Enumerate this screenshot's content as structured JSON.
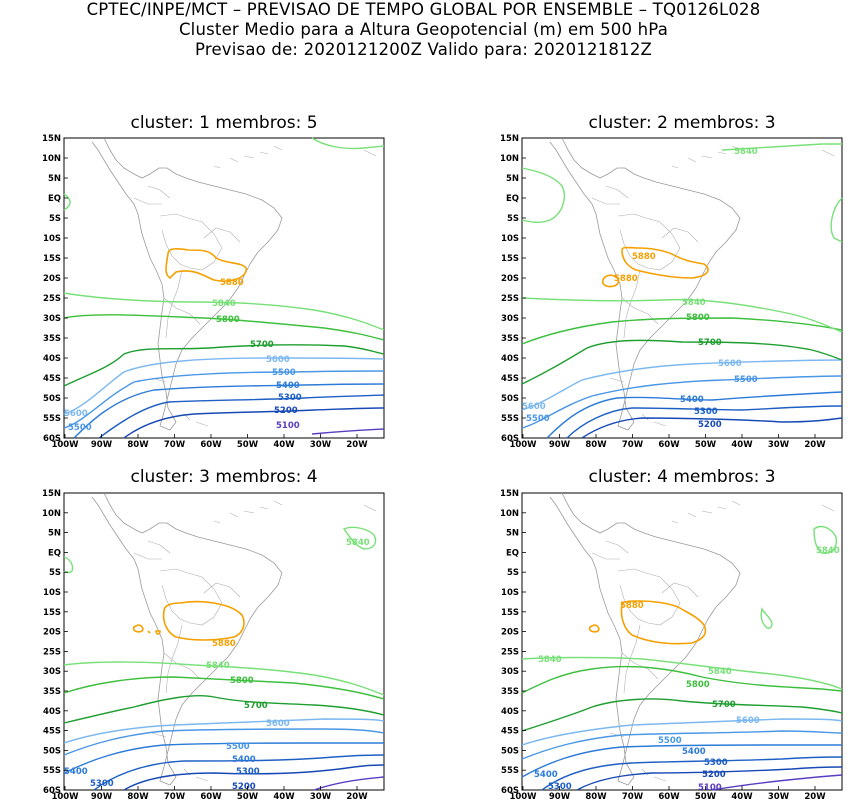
{
  "header": {
    "line1": "CPTEC/INPE/MCT – PREVISAO DE TEMPO GLOBAL POR ENSEMBLE – TQ0126L028",
    "line2": "Cluster Medio para a Altura Geopotencial (m) em 500 hPa",
    "line3": "Previsao de: 2020121200Z    Valido para: 2020121812Z"
  },
  "axes": {
    "lat_labels": [
      "15N",
      "10N",
      "5N",
      "EQ",
      "5S",
      "10S",
      "15S",
      "20S",
      "25S",
      "30S",
      "35S",
      "40S",
      "45S",
      "50S",
      "55S",
      "60S"
    ],
    "lon_labels": [
      "100W",
      "90W",
      "80W",
      "70W",
      "60W",
      "50W",
      "40W",
      "30W",
      "20W"
    ]
  },
  "colors": {
    "c5100": "#5a3dc1",
    "c5200": "#1749b5",
    "c5300": "#1d5fc4",
    "c5400": "#2b7bd8",
    "c5500": "#4a97e6",
    "c5600": "#7cb8f0",
    "c5700": "#1f9e30",
    "c5800": "#3cbf3c",
    "c5840": "#78e078",
    "c5880": "#f5a000",
    "coast": "#909090"
  },
  "panels": [
    {
      "title": "cluster: 1   membros: 5",
      "labels": {
        "l5880": "5880",
        "l5840": "5840",
        "l5800": "5800",
        "l5700": "5700",
        "l5600": "5600",
        "l5600b": "5600",
        "l5500": "5500",
        "l5500b": "5500",
        "l5400": "5400",
        "l5300": "5300",
        "l5200": "5200",
        "l5100": "5100"
      }
    },
    {
      "title": "cluster: 2   membros: 3",
      "labels": {
        "l5840top": "5840",
        "l5880": "5880",
        "l5880b": "5880",
        "l5840": "5840",
        "l5800": "5800",
        "l5700": "5700",
        "l5600": "5600",
        "l5600b": "5600",
        "l5500": "5500",
        "l5500b": "5500",
        "l5400": "5400",
        "l5300": "5300",
        "l5200": "5200"
      }
    },
    {
      "title": "cluster: 3   membros: 4",
      "labels": {
        "l5840top": "5840",
        "l5880": "5880",
        "l5840": "5840",
        "l5800": "5800",
        "l5700": "5700",
        "l5600": "5600",
        "l5500": "5500",
        "l5400": "5400",
        "l5400b": "5400",
        "l5300": "5300",
        "l5300b": "5300",
        "l5200": "5200"
      }
    },
    {
      "title": "cluster: 4   membros: 3",
      "labels": {
        "l5840top": "5840",
        "l5880": "5880",
        "l5840": "5840",
        "l5840b": "5840",
        "l5800": "5800",
        "l5700": "5700",
        "l5600": "5600",
        "l5500": "5500",
        "l5400": "5400",
        "l5400b": "5400",
        "l5300": "5300",
        "l5300b": "5300",
        "l5200": "5200",
        "l5100": "5100"
      }
    }
  ]
}
